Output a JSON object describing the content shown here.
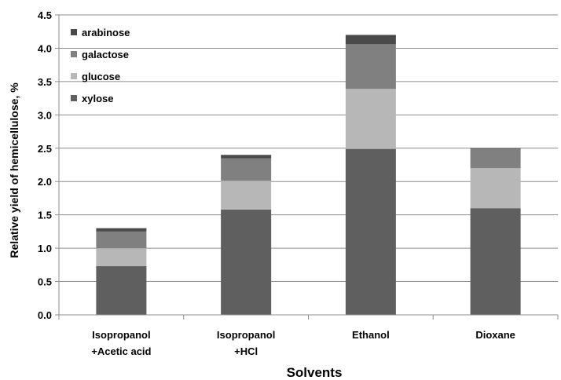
{
  "chart_data": {
    "type": "bar",
    "stacked": true,
    "categories": [
      [
        "Isopropanol",
        "+Acetic acid"
      ],
      [
        "Isopropanol",
        "+HCl"
      ],
      [
        "Ethanol"
      ],
      [
        "Dioxane"
      ]
    ],
    "series": [
      {
        "name": "xylose",
        "values": [
          0.73,
          1.58,
          2.49,
          1.6
        ],
        "color": "#5f5f5f"
      },
      {
        "name": "glucose",
        "values": [
          0.27,
          0.43,
          0.9,
          0.6
        ],
        "color": "#b7b7b7"
      },
      {
        "name": "galactose",
        "values": [
          0.25,
          0.34,
          0.67,
          0.29
        ],
        "color": "#808080"
      },
      {
        "name": "arabinose",
        "values": [
          0.05,
          0.05,
          0.14,
          0.01
        ],
        "color": "#4a4a4a"
      }
    ],
    "legend_order": [
      "arabinose",
      "galactose",
      "glucose",
      "xylose"
    ],
    "title": "",
    "xlabel": "Solvents",
    "ylabel": "Relative yield of hemicellulose, %",
    "ylim": [
      0,
      4.5
    ],
    "ytick_step": 0.5,
    "ytick_labels": [
      "0.0",
      "0.5",
      "1.0",
      "1.5",
      "2.0",
      "2.5",
      "3.0",
      "3.5",
      "4.0",
      "4.5"
    ],
    "grid": true,
    "legend_position": "top-left"
  }
}
